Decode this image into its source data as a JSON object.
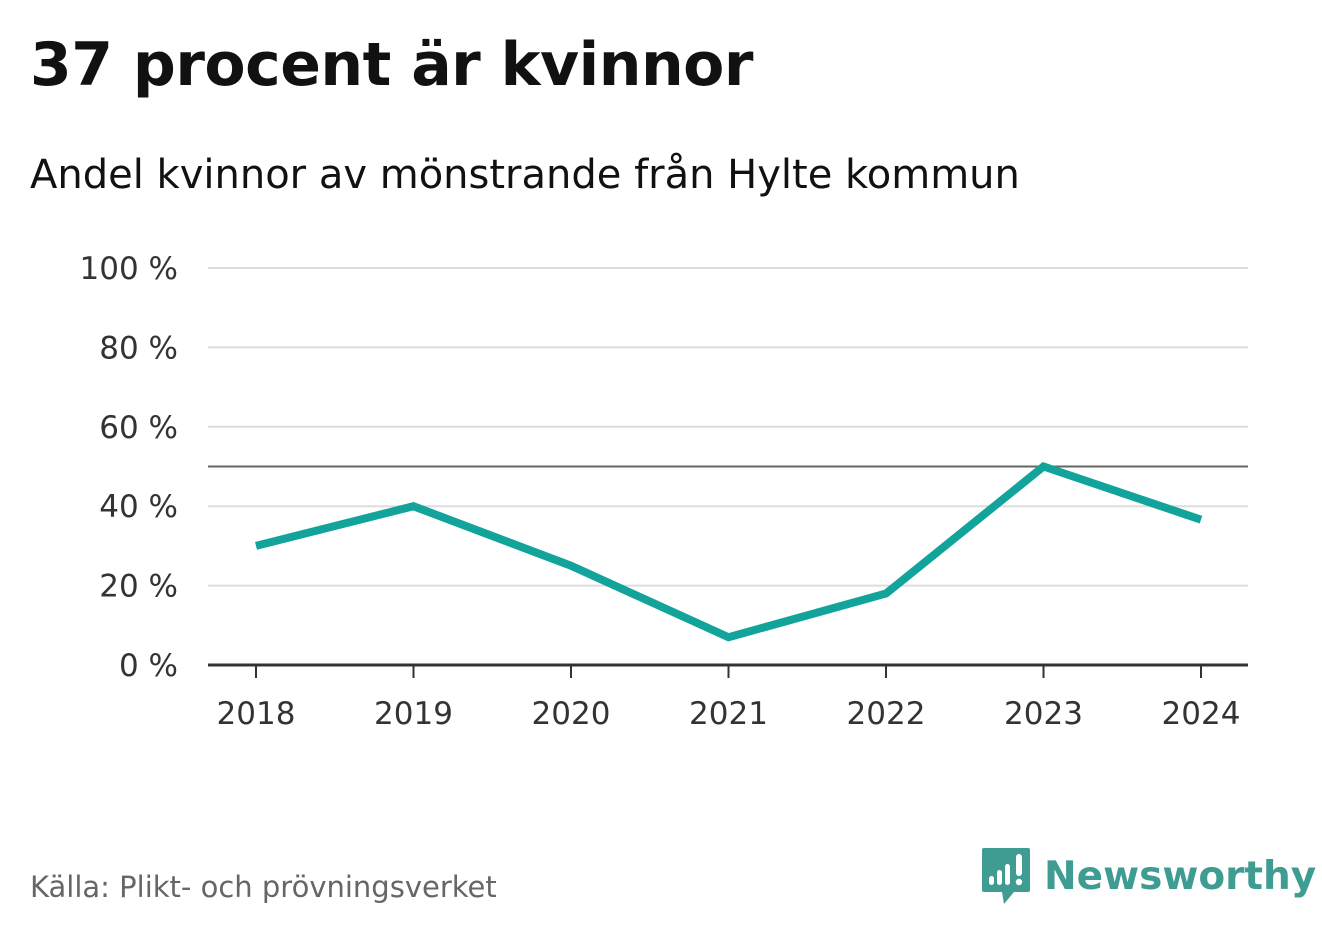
{
  "title": "37 procent är kvinnor",
  "subtitle": "Andel kvinnor av mönstrande från Hylte kommun",
  "source": "Källa: Plikt- och prövningsverket",
  "brand": {
    "name": "Newsworthy",
    "icon": "newsworthy-logo-icon",
    "color": "#3e9c92"
  },
  "colors": {
    "line": "#12a39a",
    "grid": "#dddddd",
    "reference": "#666666",
    "axis": "#333333"
  },
  "chart_data": {
    "type": "line",
    "title": "37 procent är kvinnor",
    "subtitle": "Andel kvinnor av mönstrande från Hylte kommun",
    "x": [
      "2018",
      "2019",
      "2020",
      "2021",
      "2022",
      "2023",
      "2024"
    ],
    "series": [
      {
        "values": [
          30,
          40,
          25,
          7,
          18,
          50,
          36.6
        ]
      }
    ],
    "ylim": [
      0,
      100
    ],
    "yticks": [
      0,
      20,
      40,
      60,
      80,
      100
    ],
    "ytick_labels": [
      "0 %",
      "20 %",
      "40 %",
      "60 %",
      "80 %",
      "100 %"
    ],
    "reference_line": 50,
    "grid": true,
    "legend": "none"
  }
}
